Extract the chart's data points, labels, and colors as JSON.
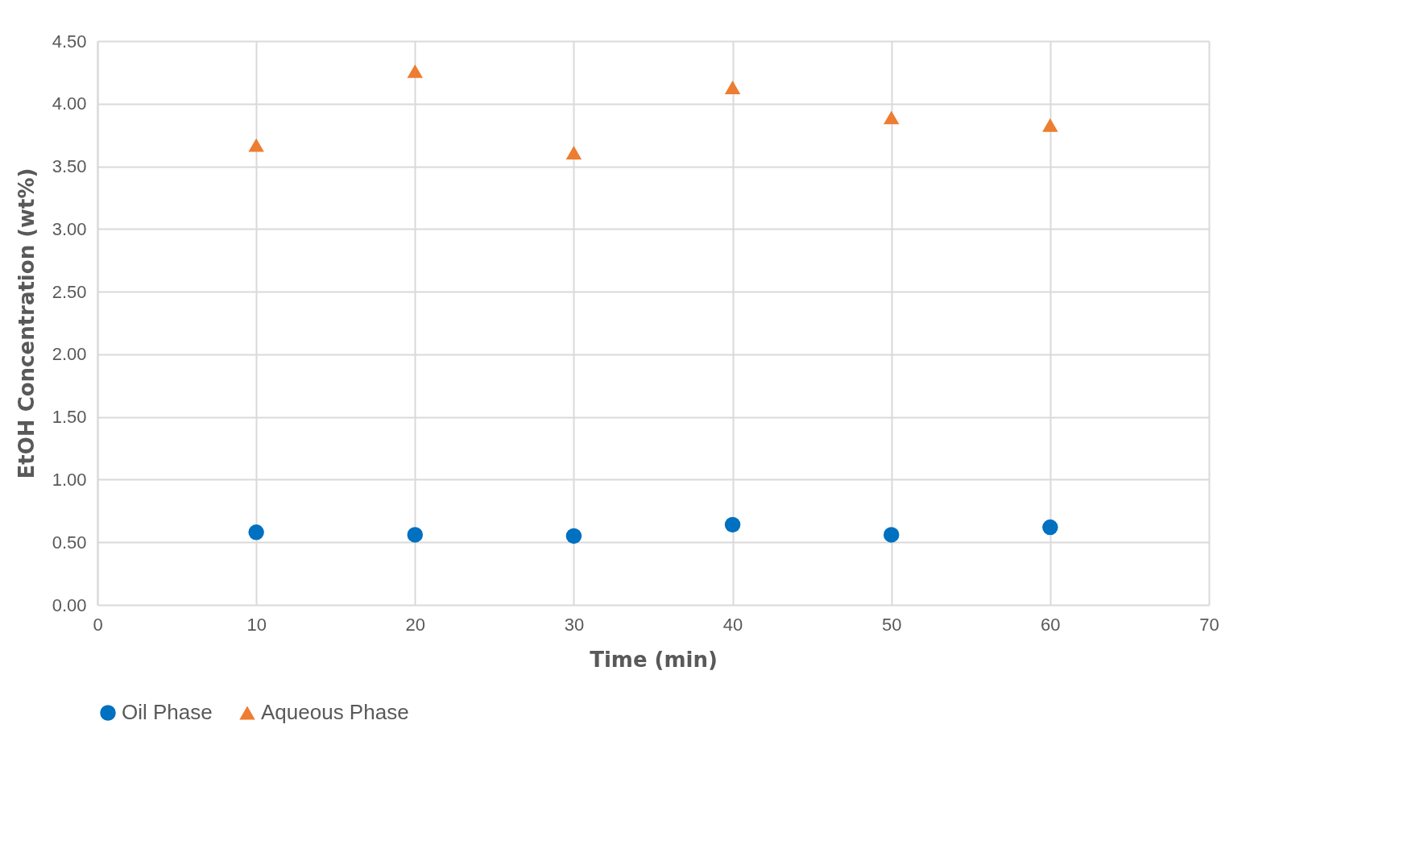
{
  "chart_data": {
    "type": "scatter",
    "xlabel": "Time (min)",
    "ylabel": "EtOH Concentration (wt%)",
    "xlim": [
      0,
      70
    ],
    "xticks": [
      0,
      10,
      20,
      30,
      40,
      50,
      60,
      70
    ],
    "ylim": [
      0,
      4.5
    ],
    "yticks": [
      {
        "value": 0,
        "label": "0.00"
      },
      {
        "value": 0.5,
        "label": "0.50"
      },
      {
        "value": 1,
        "label": "1.00"
      },
      {
        "value": 1.5,
        "label": "1.50"
      },
      {
        "value": 2,
        "label": "2.00"
      },
      {
        "value": 2.5,
        "label": "2.50"
      },
      {
        "value": 3,
        "label": "3.00"
      },
      {
        "value": 3.5,
        "label": "3.50"
      },
      {
        "value": 4,
        "label": "4.00"
      },
      {
        "value": 4.5,
        "label": "4.50"
      }
    ],
    "x": [
      10,
      20,
      30,
      40,
      50,
      60
    ],
    "series": [
      {
        "name": "Oil Phase",
        "color": "#0070c0",
        "marker": "circle",
        "values": [
          0.58,
          0.56,
          0.55,
          0.64,
          0.56,
          0.62
        ]
      },
      {
        "name": "Aqueous Phase",
        "color": "#ed7d31",
        "marker": "triangle",
        "values": [
          3.67,
          4.26,
          3.61,
          4.13,
          3.89,
          3.83
        ]
      }
    ],
    "grid": true,
    "legend": "bottom"
  }
}
